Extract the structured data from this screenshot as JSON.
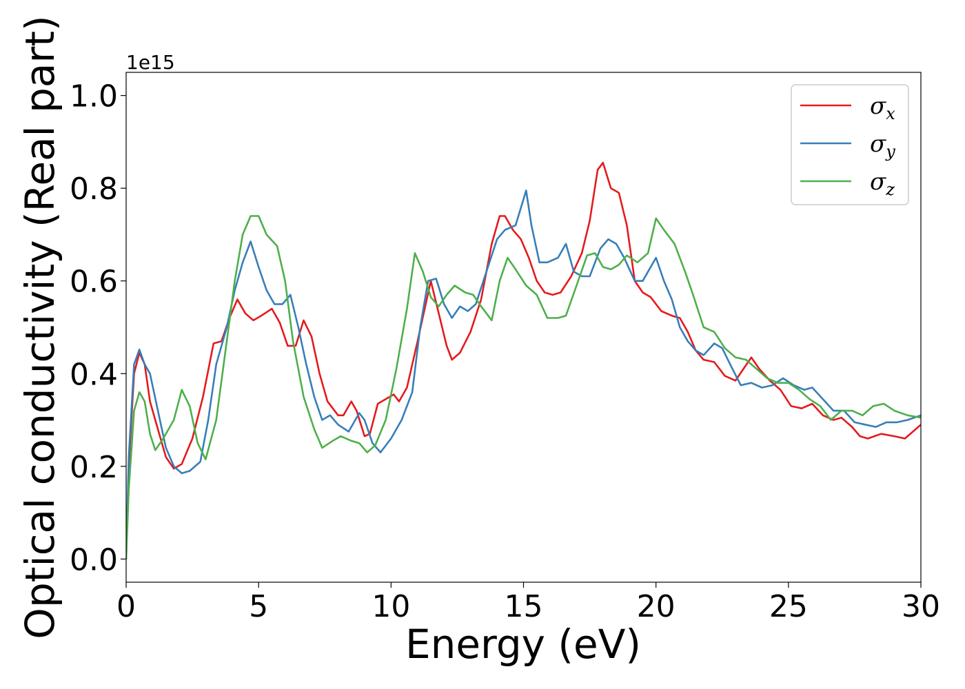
{
  "chart_data": {
    "type": "line",
    "xlabel": "Energy (eV)",
    "ylabel": "Optical conductivity (Real part)",
    "y_offset_text": "1e15",
    "xlim": [
      0,
      30
    ],
    "ylim": [
      -0.05,
      1.05
    ],
    "x_ticks": [
      0,
      5,
      10,
      15,
      20,
      25,
      30
    ],
    "y_ticks": [
      0.0,
      0.2,
      0.4,
      0.6,
      0.8,
      1.0
    ],
    "x_tick_labels": [
      "0",
      "5",
      "10",
      "15",
      "20",
      "25",
      "30"
    ],
    "y_tick_labels": [
      "0.0",
      "0.2",
      "0.4",
      "0.6",
      "0.8",
      "1.0"
    ],
    "grid": false,
    "legend_position": "top-right",
    "series": [
      {
        "name": "σx",
        "symbol": "σ",
        "subscript": "x",
        "color": "#e41a1c",
        "points": [
          [
            0,
            0
          ],
          [
            0.1,
            0.2
          ],
          [
            0.3,
            0.4
          ],
          [
            0.5,
            0.445
          ],
          [
            0.7,
            0.42
          ],
          [
            0.9,
            0.34
          ],
          [
            1.2,
            0.28
          ],
          [
            1.5,
            0.22
          ],
          [
            1.8,
            0.195
          ],
          [
            2.1,
            0.205
          ],
          [
            2.5,
            0.26
          ],
          [
            2.9,
            0.35
          ],
          [
            3.3,
            0.465
          ],
          [
            3.6,
            0.47
          ],
          [
            3.9,
            0.52
          ],
          [
            4.2,
            0.56
          ],
          [
            4.5,
            0.53
          ],
          [
            4.8,
            0.515
          ],
          [
            5.1,
            0.525
          ],
          [
            5.5,
            0.54
          ],
          [
            5.8,
            0.51
          ],
          [
            6.1,
            0.46
          ],
          [
            6.4,
            0.46
          ],
          [
            6.7,
            0.515
          ],
          [
            7.0,
            0.48
          ],
          [
            7.3,
            0.4
          ],
          [
            7.6,
            0.34
          ],
          [
            8.0,
            0.31
          ],
          [
            8.2,
            0.31
          ],
          [
            8.5,
            0.34
          ],
          [
            8.7,
            0.32
          ],
          [
            9.0,
            0.265
          ],
          [
            9.2,
            0.27
          ],
          [
            9.5,
            0.335
          ],
          [
            9.8,
            0.345
          ],
          [
            10.1,
            0.355
          ],
          [
            10.3,
            0.34
          ],
          [
            10.6,
            0.37
          ],
          [
            11.0,
            0.47
          ],
          [
            11.5,
            0.6
          ],
          [
            11.8,
            0.53
          ],
          [
            12.1,
            0.46
          ],
          [
            12.3,
            0.43
          ],
          [
            12.6,
            0.445
          ],
          [
            13.0,
            0.49
          ],
          [
            13.4,
            0.56
          ],
          [
            13.8,
            0.68
          ],
          [
            14.1,
            0.74
          ],
          [
            14.3,
            0.74
          ],
          [
            14.6,
            0.71
          ],
          [
            14.9,
            0.69
          ],
          [
            15.2,
            0.65
          ],
          [
            15.5,
            0.6
          ],
          [
            15.8,
            0.575
          ],
          [
            16.1,
            0.57
          ],
          [
            16.4,
            0.575
          ],
          [
            16.8,
            0.61
          ],
          [
            17.2,
            0.66
          ],
          [
            17.5,
            0.73
          ],
          [
            17.8,
            0.84
          ],
          [
            18.0,
            0.855
          ],
          [
            18.3,
            0.8
          ],
          [
            18.6,
            0.79
          ],
          [
            18.9,
            0.72
          ],
          [
            19.2,
            0.6
          ],
          [
            19.5,
            0.575
          ],
          [
            19.8,
            0.565
          ],
          [
            20.2,
            0.535
          ],
          [
            20.6,
            0.525
          ],
          [
            20.9,
            0.52
          ],
          [
            21.2,
            0.49
          ],
          [
            21.5,
            0.45
          ],
          [
            21.8,
            0.43
          ],
          [
            22.2,
            0.425
          ],
          [
            22.6,
            0.395
          ],
          [
            23.0,
            0.385
          ],
          [
            23.3,
            0.41
          ],
          [
            23.6,
            0.435
          ],
          [
            23.9,
            0.41
          ],
          [
            24.3,
            0.385
          ],
          [
            24.7,
            0.365
          ],
          [
            25.1,
            0.33
          ],
          [
            25.5,
            0.325
          ],
          [
            25.9,
            0.335
          ],
          [
            26.3,
            0.31
          ],
          [
            26.7,
            0.3
          ],
          [
            27.0,
            0.305
          ],
          [
            27.4,
            0.285
          ],
          [
            27.7,
            0.265
          ],
          [
            28.0,
            0.26
          ],
          [
            28.5,
            0.27
          ],
          [
            29.0,
            0.265
          ],
          [
            29.4,
            0.26
          ],
          [
            29.7,
            0.275
          ],
          [
            30,
            0.29
          ]
        ]
      },
      {
        "name": "σy",
        "symbol": "σ",
        "subscript": "y",
        "color": "#377eb8",
        "points": [
          [
            0,
            0
          ],
          [
            0.1,
            0.22
          ],
          [
            0.3,
            0.42
          ],
          [
            0.5,
            0.452
          ],
          [
            0.7,
            0.42
          ],
          [
            0.9,
            0.4
          ],
          [
            1.2,
            0.32
          ],
          [
            1.5,
            0.24
          ],
          [
            1.8,
            0.2
          ],
          [
            2.1,
            0.185
          ],
          [
            2.4,
            0.19
          ],
          [
            2.8,
            0.21
          ],
          [
            3.1,
            0.3
          ],
          [
            3.4,
            0.42
          ],
          [
            3.8,
            0.5
          ],
          [
            4.1,
            0.58
          ],
          [
            4.4,
            0.64
          ],
          [
            4.7,
            0.685
          ],
          [
            5.0,
            0.63
          ],
          [
            5.3,
            0.58
          ],
          [
            5.6,
            0.55
          ],
          [
            5.9,
            0.55
          ],
          [
            6.2,
            0.57
          ],
          [
            6.5,
            0.5
          ],
          [
            6.8,
            0.42
          ],
          [
            7.1,
            0.35
          ],
          [
            7.4,
            0.3
          ],
          [
            7.7,
            0.31
          ],
          [
            8.0,
            0.29
          ],
          [
            8.4,
            0.275
          ],
          [
            8.8,
            0.315
          ],
          [
            9.0,
            0.3
          ],
          [
            9.3,
            0.25
          ],
          [
            9.6,
            0.23
          ],
          [
            10.0,
            0.26
          ],
          [
            10.4,
            0.3
          ],
          [
            10.8,
            0.36
          ],
          [
            11.1,
            0.5
          ],
          [
            11.4,
            0.6
          ],
          [
            11.7,
            0.605
          ],
          [
            12.0,
            0.55
          ],
          [
            12.3,
            0.52
          ],
          [
            12.6,
            0.545
          ],
          [
            12.9,
            0.535
          ],
          [
            13.2,
            0.55
          ],
          [
            13.6,
            0.62
          ],
          [
            14.0,
            0.69
          ],
          [
            14.3,
            0.71
          ],
          [
            14.7,
            0.72
          ],
          [
            15.1,
            0.795
          ],
          [
            15.3,
            0.72
          ],
          [
            15.6,
            0.64
          ],
          [
            15.9,
            0.64
          ],
          [
            16.3,
            0.65
          ],
          [
            16.6,
            0.68
          ],
          [
            16.9,
            0.62
          ],
          [
            17.2,
            0.61
          ],
          [
            17.5,
            0.61
          ],
          [
            17.9,
            0.67
          ],
          [
            18.2,
            0.69
          ],
          [
            18.5,
            0.68
          ],
          [
            18.8,
            0.65
          ],
          [
            19.2,
            0.6
          ],
          [
            19.5,
            0.6
          ],
          [
            19.7,
            0.62
          ],
          [
            20.0,
            0.65
          ],
          [
            20.3,
            0.6
          ],
          [
            20.6,
            0.56
          ],
          [
            20.9,
            0.5
          ],
          [
            21.2,
            0.47
          ],
          [
            21.5,
            0.45
          ],
          [
            21.8,
            0.44
          ],
          [
            22.2,
            0.465
          ],
          [
            22.5,
            0.455
          ],
          [
            22.8,
            0.42
          ],
          [
            23.2,
            0.375
          ],
          [
            23.6,
            0.38
          ],
          [
            24.0,
            0.37
          ],
          [
            24.4,
            0.375
          ],
          [
            24.8,
            0.39
          ],
          [
            25.2,
            0.375
          ],
          [
            25.6,
            0.365
          ],
          [
            25.9,
            0.37
          ],
          [
            26.3,
            0.345
          ],
          [
            26.7,
            0.32
          ],
          [
            27.1,
            0.32
          ],
          [
            27.5,
            0.295
          ],
          [
            27.9,
            0.29
          ],
          [
            28.3,
            0.285
          ],
          [
            28.7,
            0.295
          ],
          [
            29.1,
            0.295
          ],
          [
            29.5,
            0.3
          ],
          [
            30,
            0.31
          ]
        ]
      },
      {
        "name": "σz",
        "symbol": "σ",
        "subscript": "z",
        "color": "#4daf4a",
        "points": [
          [
            0,
            0
          ],
          [
            0.1,
            0.15
          ],
          [
            0.3,
            0.32
          ],
          [
            0.5,
            0.36
          ],
          [
            0.7,
            0.34
          ],
          [
            0.9,
            0.27
          ],
          [
            1.1,
            0.235
          ],
          [
            1.4,
            0.26
          ],
          [
            1.8,
            0.3
          ],
          [
            2.1,
            0.365
          ],
          [
            2.4,
            0.33
          ],
          [
            2.7,
            0.25
          ],
          [
            3.0,
            0.215
          ],
          [
            3.4,
            0.3
          ],
          [
            3.8,
            0.47
          ],
          [
            4.1,
            0.6
          ],
          [
            4.4,
            0.7
          ],
          [
            4.7,
            0.74
          ],
          [
            5.0,
            0.74
          ],
          [
            5.3,
            0.7
          ],
          [
            5.7,
            0.675
          ],
          [
            6.0,
            0.6
          ],
          [
            6.3,
            0.47
          ],
          [
            6.7,
            0.35
          ],
          [
            7.1,
            0.28
          ],
          [
            7.4,
            0.24
          ],
          [
            7.8,
            0.255
          ],
          [
            8.1,
            0.265
          ],
          [
            8.5,
            0.255
          ],
          [
            8.8,
            0.25
          ],
          [
            9.1,
            0.23
          ],
          [
            9.4,
            0.245
          ],
          [
            9.8,
            0.3
          ],
          [
            10.2,
            0.41
          ],
          [
            10.6,
            0.54
          ],
          [
            10.9,
            0.66
          ],
          [
            11.2,
            0.62
          ],
          [
            11.5,
            0.565
          ],
          [
            11.8,
            0.545
          ],
          [
            12.1,
            0.57
          ],
          [
            12.4,
            0.59
          ],
          [
            12.8,
            0.575
          ],
          [
            13.1,
            0.57
          ],
          [
            13.4,
            0.545
          ],
          [
            13.8,
            0.515
          ],
          [
            14.1,
            0.6
          ],
          [
            14.4,
            0.65
          ],
          [
            14.7,
            0.625
          ],
          [
            15.1,
            0.59
          ],
          [
            15.5,
            0.57
          ],
          [
            15.9,
            0.52
          ],
          [
            16.3,
            0.52
          ],
          [
            16.6,
            0.525
          ],
          [
            17.0,
            0.59
          ],
          [
            17.4,
            0.655
          ],
          [
            17.7,
            0.66
          ],
          [
            18.0,
            0.63
          ],
          [
            18.3,
            0.625
          ],
          [
            18.6,
            0.635
          ],
          [
            18.9,
            0.655
          ],
          [
            19.3,
            0.64
          ],
          [
            19.7,
            0.66
          ],
          [
            20.0,
            0.735
          ],
          [
            20.3,
            0.71
          ],
          [
            20.7,
            0.68
          ],
          [
            21.1,
            0.62
          ],
          [
            21.4,
            0.57
          ],
          [
            21.8,
            0.5
          ],
          [
            22.2,
            0.49
          ],
          [
            22.6,
            0.455
          ],
          [
            23.0,
            0.435
          ],
          [
            23.4,
            0.43
          ],
          [
            23.8,
            0.41
          ],
          [
            24.2,
            0.39
          ],
          [
            24.6,
            0.38
          ],
          [
            25.0,
            0.38
          ],
          [
            25.4,
            0.365
          ],
          [
            25.8,
            0.345
          ],
          [
            26.2,
            0.33
          ],
          [
            26.6,
            0.3
          ],
          [
            27.0,
            0.32
          ],
          [
            27.4,
            0.32
          ],
          [
            27.8,
            0.31
          ],
          [
            28.2,
            0.33
          ],
          [
            28.6,
            0.335
          ],
          [
            29.0,
            0.32
          ],
          [
            29.5,
            0.31
          ],
          [
            30,
            0.305
          ]
        ]
      }
    ]
  }
}
